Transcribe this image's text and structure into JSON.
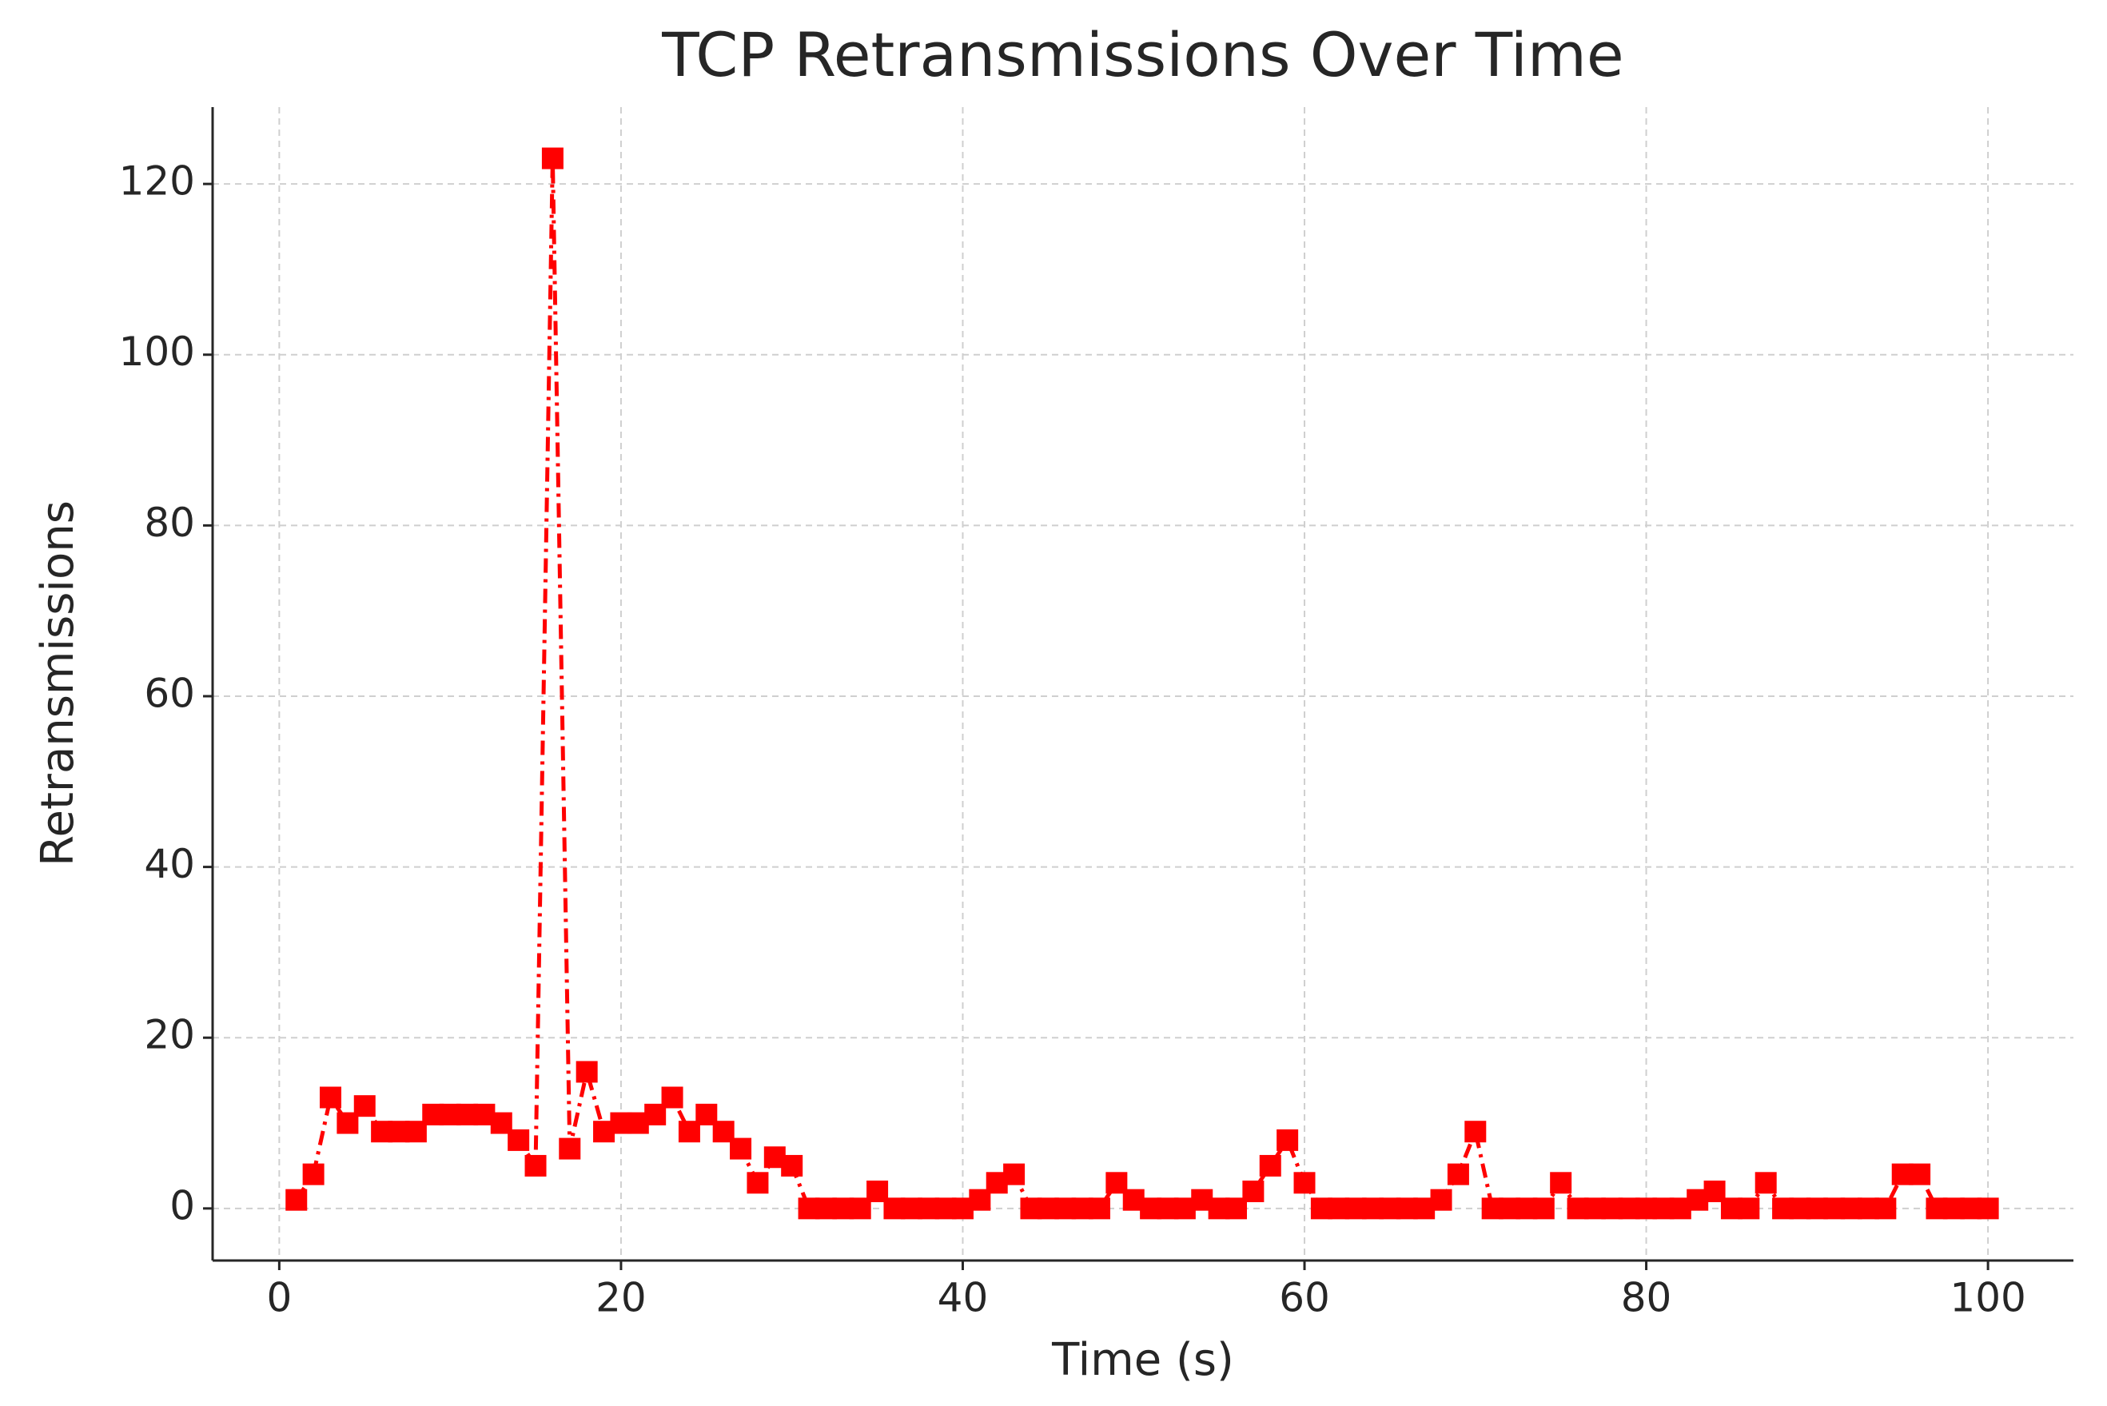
{
  "chart_data": {
    "type": "line",
    "title": "TCP Retransmissions Over Time",
    "x_label": "Time (s)",
    "y_label": "Retransmissions",
    "x": [
      1,
      2,
      3,
      4,
      5,
      6,
      7,
      8,
      9,
      10,
      11,
      12,
      13,
      14,
      15,
      16,
      17,
      18,
      19,
      20,
      21,
      22,
      23,
      24,
      25,
      26,
      27,
      28,
      29,
      30,
      31,
      32,
      33,
      34,
      35,
      36,
      37,
      38,
      39,
      40,
      41,
      42,
      43,
      44,
      45,
      46,
      47,
      48,
      49,
      50,
      51,
      52,
      53,
      54,
      55,
      56,
      57,
      58,
      59,
      60,
      61,
      62,
      63,
      64,
      65,
      66,
      67,
      68,
      69,
      70,
      71,
      72,
      73,
      74,
      75,
      76,
      77,
      78,
      79,
      80,
      81,
      82,
      83,
      84,
      85,
      86,
      87,
      88,
      89,
      90,
      91,
      92,
      93,
      94,
      95,
      96,
      97,
      98,
      99,
      100
    ],
    "series": [
      {
        "name": "Retransmissions",
        "color": "#ff0000",
        "line_style": "dashdot",
        "marker": "square",
        "values": [
          1,
          4,
          13,
          10,
          12,
          9,
          9,
          9,
          11,
          11,
          11,
          11,
          10,
          8,
          5,
          123,
          7,
          16,
          9,
          10,
          10,
          11,
          13,
          9,
          11,
          9,
          7,
          3,
          6,
          5,
          0,
          0,
          0,
          0,
          2,
          0,
          0,
          0,
          0,
          0,
          1,
          3,
          4,
          0,
          0,
          0,
          0,
          0,
          3,
          1,
          0,
          0,
          0,
          1,
          0,
          0,
          2,
          5,
          8,
          3,
          0,
          0,
          0,
          0,
          0,
          0,
          0,
          1,
          4,
          9,
          0,
          0,
          0,
          0,
          3,
          0,
          0,
          0,
          0,
          0,
          0,
          0,
          1,
          2,
          0,
          0,
          3,
          0,
          0,
          0,
          0,
          0,
          0,
          0,
          4,
          4,
          0,
          0,
          0,
          0
        ]
      }
    ],
    "xlim": [
      -3.9,
      105
    ],
    "ylim": [
      -6.1,
      129
    ],
    "xticks": [
      0,
      20,
      40,
      60,
      80,
      100
    ],
    "yticks": [
      0,
      20,
      40,
      60,
      80,
      100,
      120
    ],
    "grid": true
  }
}
